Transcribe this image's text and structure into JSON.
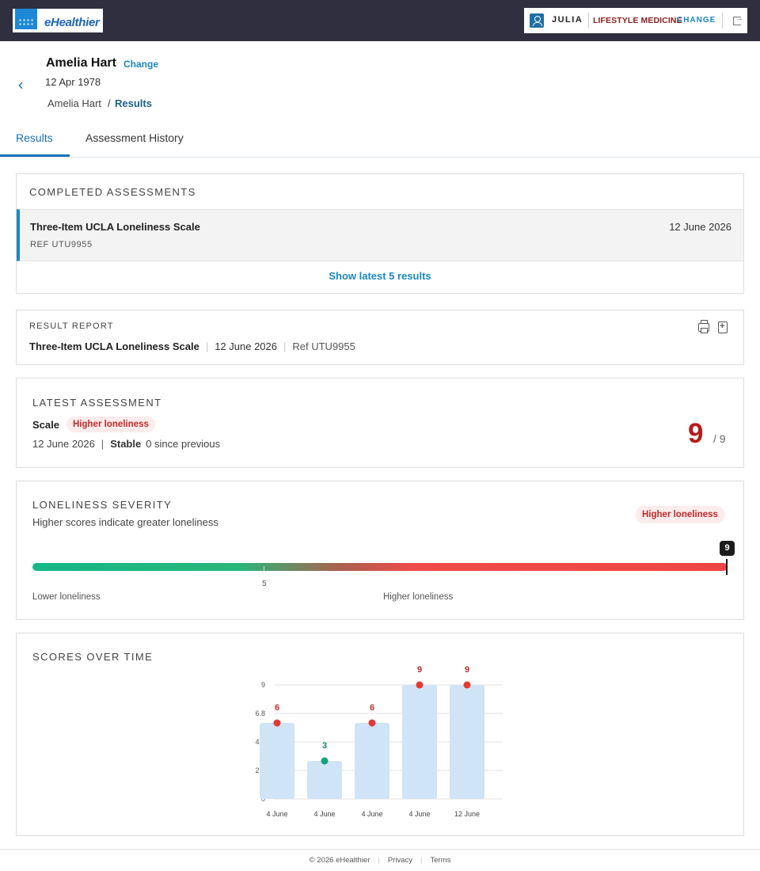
{
  "app": {
    "logo_text": "eHealthier"
  },
  "user_menu": {
    "user_name": "JULIA",
    "organisation": "LIFESTYLE MEDICINE",
    "change_label": "CHANGE"
  },
  "patient": {
    "name": "Amelia Hart",
    "change_label": "Change",
    "dob": "12 Apr 1978",
    "breadcrumb": {
      "patient": "Amelia Hart",
      "separator": "/",
      "current": "Results"
    }
  },
  "tabs": [
    {
      "label": "Results",
      "active": true
    },
    {
      "label": "Assessment History",
      "active": false
    }
  ],
  "completed": {
    "heading": "COMPLETED ASSESSMENTS",
    "item": {
      "title": "Three-Item UCLA Loneliness Scale",
      "ref": "REF UTU9955",
      "date": "12 June 2026"
    },
    "show_latest": "Show latest 5 results"
  },
  "report": {
    "heading": "RESULT REPORT",
    "title": "Three-Item UCLA Loneliness Scale",
    "date": "12 June 2026",
    "ref": "Ref UTU9955",
    "print_icon": "print-icon",
    "export_icon": "export-pdf-icon"
  },
  "latest": {
    "heading": "LATEST ASSESSMENT",
    "scale_label": "Scale",
    "badge": "Higher loneliness",
    "date": "12 June 2026",
    "separator": "|",
    "trend": "Stable",
    "change": "0 since previous",
    "score": "9",
    "max": "/ 9"
  },
  "severity": {
    "heading": "LONELINESS SEVERITY",
    "description": "Higher scores indicate greater loneliness",
    "badge": "Higher loneliness",
    "score": 9,
    "score_label": "9",
    "min": 3,
    "max": 9,
    "threshold_label": "5",
    "low_label": "Lower loneliness",
    "high_label": "Higher loneliness",
    "colors": {
      "low": "#13b786",
      "high": "#ef4444"
    }
  },
  "scores_chart": {
    "heading": "SCORES OVER TIME",
    "colors": {
      "bar": "#cfe4f6",
      "high_point": "#e53935",
      "low_point": "#13a374",
      "high_text": "#c62828",
      "low_text": "#0f8a5f",
      "grid": "#e2e2e2"
    }
  },
  "chart_data": {
    "type": "bar",
    "categories": [
      "4 June",
      "4 June",
      "4 June",
      "4 June",
      "12 June"
    ],
    "values": [
      6,
      3,
      6,
      9,
      9
    ],
    "ylim": [
      0,
      9
    ],
    "yticks": [
      "0",
      "2.3",
      "4.5",
      "6.8",
      "9"
    ],
    "point_status": [
      "high",
      "low",
      "high",
      "high",
      "high"
    ],
    "grid": true
  },
  "footer": {
    "copyright": "© 2026 eHealthier",
    "privacy": "Privacy",
    "terms": "Terms"
  }
}
